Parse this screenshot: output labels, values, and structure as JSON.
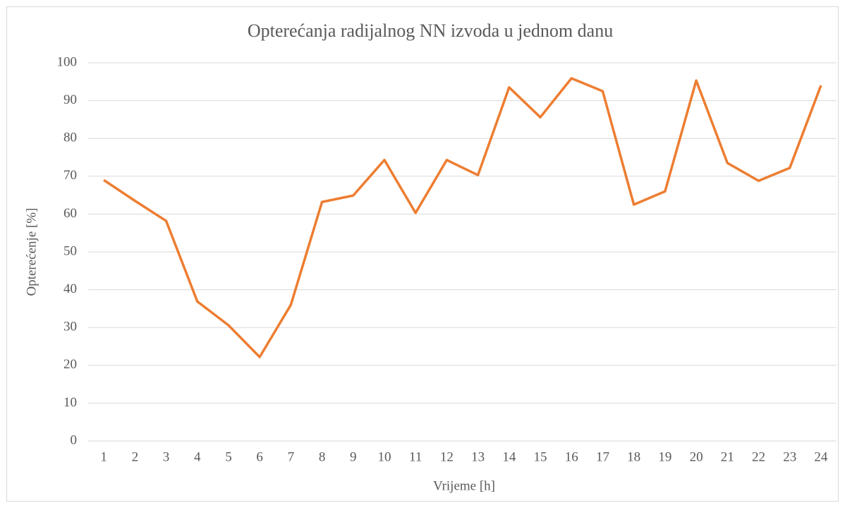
{
  "chart_data": {
    "type": "line",
    "title": "Opterećanja radijalnog NN izvoda u jednom danu",
    "x_label": "Vrijeme [h]",
    "y_label": "Opterećenje [%]",
    "categories": [
      "1",
      "2",
      "3",
      "4",
      "5",
      "6",
      "7",
      "8",
      "9",
      "10",
      "11",
      "12",
      "13",
      "14",
      "15",
      "16",
      "17",
      "18",
      "19",
      "20",
      "21",
      "22",
      "23",
      "24"
    ],
    "series": [
      {
        "name": "Opterećenje",
        "color": "#ed7d31",
        "values": [
          69,
          63.5,
          58.2,
          36.9,
          30.6,
          22.2,
          36,
          63.2,
          64.9,
          74.3,
          60.3,
          74.3,
          70.3,
          93.5,
          85.6,
          95.9,
          92.5,
          62.5,
          66,
          95.3,
          73.5,
          68.8,
          72.2,
          94
        ]
      }
    ],
    "ylim": [
      0,
      100
    ],
    "yticks": [
      0,
      10,
      20,
      30,
      40,
      50,
      60,
      70,
      80,
      90,
      100
    ],
    "grid": true
  }
}
